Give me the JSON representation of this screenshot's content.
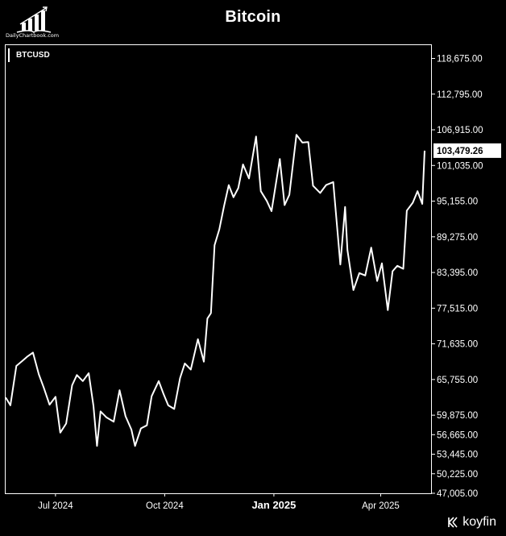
{
  "source_logo_text": "DailyChartbook.com",
  "brand": "koyfin",
  "chart_data": {
    "type": "line",
    "title": "Bitcoin",
    "series": [
      {
        "name": "BTCUSD",
        "x": [
          "2024-05-20",
          "2024-05-24",
          "2024-05-29",
          "2024-06-03",
          "2024-06-07",
          "2024-06-12",
          "2024-06-17",
          "2024-06-21",
          "2024-06-26",
          "2024-07-01",
          "2024-07-05",
          "2024-07-10",
          "2024-07-15",
          "2024-07-19",
          "2024-07-24",
          "2024-07-29",
          "2024-08-02",
          "2024-08-05",
          "2024-08-08",
          "2024-08-13",
          "2024-08-19",
          "2024-08-24",
          "2024-08-29",
          "2024-09-03",
          "2024-09-06",
          "2024-09-11",
          "2024-09-16",
          "2024-09-20",
          "2024-09-26",
          "2024-09-30",
          "2024-10-04",
          "2024-10-09",
          "2024-10-14",
          "2024-10-18",
          "2024-10-23",
          "2024-10-29",
          "2024-11-03",
          "2024-11-06",
          "2024-11-09",
          "2024-11-12",
          "2024-11-16",
          "2024-11-20",
          "2024-11-24",
          "2024-11-28",
          "2024-12-02",
          "2024-12-06",
          "2024-12-11",
          "2024-12-17",
          "2024-12-21",
          "2024-12-26",
          "2024-12-30",
          "2025-01-06",
          "2025-01-10",
          "2025-01-14",
          "2025-01-20",
          "2025-01-25",
          "2025-01-30",
          "2025-02-03",
          "2025-02-09",
          "2025-02-14",
          "2025-02-20",
          "2025-02-26",
          "2025-03-02",
          "2025-03-04",
          "2025-03-09",
          "2025-03-14",
          "2025-03-19",
          "2025-03-24",
          "2025-03-29",
          "2025-04-02",
          "2025-04-07",
          "2025-04-11",
          "2025-04-15",
          "2025-04-20",
          "2025-04-23",
          "2025-04-28",
          "2025-05-02",
          "2025-05-06",
          "2025-05-08"
        ],
        "values": [
          62800,
          61500,
          68000,
          68800,
          69500,
          70200,
          66600,
          64500,
          61600,
          62900,
          57000,
          58500,
          64800,
          66500,
          65500,
          66800,
          61400,
          54800,
          60500,
          59500,
          58800,
          64000,
          59700,
          57500,
          54800,
          57700,
          58200,
          63000,
          65500,
          63400,
          61500,
          60900,
          66000,
          68400,
          67400,
          72400,
          68700,
          75800,
          76700,
          87900,
          90500,
          94300,
          97800,
          95800,
          97300,
          101200,
          98900,
          105800,
          96800,
          95200,
          93500,
          102100,
          94500,
          96200,
          106100,
          104800,
          104900,
          97700,
          96500,
          97800,
          98300,
          84700,
          94200,
          87100,
          80500,
          83300,
          82900,
          87500,
          82000,
          84900,
          77200,
          83600,
          84500,
          84000,
          93600,
          94900,
          96800,
          94700,
          103479
        ]
      }
    ],
    "ylim": [
      47005,
      121000
    ],
    "y_ticks": [
      "118,675.00",
      "112,795.00",
      "106,915.00",
      "101,035.00",
      "95,155.00",
      "89,275.00",
      "83,395.00",
      "77,515.00",
      "71,635.00",
      "65,755.00",
      "59,875.00",
      "56,665.00",
      "53,445.00",
      "50,225.00",
      "47,005.00"
    ],
    "y_tick_values": [
      118675,
      112795,
      106915,
      101035,
      95155,
      89275,
      83395,
      77515,
      71635,
      65755,
      59875,
      56665,
      53445,
      50225,
      47005
    ],
    "x_ticks": [
      {
        "label": "Jul 2024",
        "date": "2024-07-01",
        "bold": false
      },
      {
        "label": "Oct 2024",
        "date": "2024-10-01",
        "bold": false
      },
      {
        "label": "Jan 2025",
        "date": "2025-01-01",
        "bold": true
      },
      {
        "label": "Apr 2025",
        "date": "2025-04-01",
        "bold": false
      }
    ],
    "last_value_label": "103,479.26",
    "last_value": 103479.26,
    "grid": false,
    "legend": "top-left",
    "line_color": "#ffffff",
    "background": "#000000"
  }
}
